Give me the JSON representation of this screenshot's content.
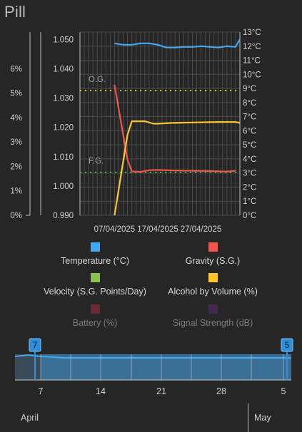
{
  "app": {
    "title": "Pill"
  },
  "chart_data": {
    "type": "line",
    "x_axis": {
      "type": "date",
      "range": [
        "2025-03-30",
        "2025-05-06"
      ],
      "tick_labels": [
        "07/04/2025",
        "17/04/2025",
        "27/04/2025"
      ],
      "grid": true
    },
    "y_axes": [
      {
        "id": "abv",
        "position": "left-outer",
        "range": [
          0,
          7.5
        ],
        "ticks": [
          "0%",
          "1%",
          "2%",
          "3%",
          "4%",
          "5%",
          "6%"
        ]
      },
      {
        "id": "gravity",
        "position": "left-inner",
        "range": [
          0.99,
          1.0525
        ],
        "ticks": [
          "0.990",
          "1.000",
          "1.010",
          "1.020",
          "1.030",
          "1.040",
          "1.050"
        ]
      },
      {
        "id": "temperature",
        "position": "right",
        "range": [
          0,
          13
        ],
        "ticks": [
          "0°C",
          "1°C",
          "2°C",
          "3°C",
          "4°C",
          "5°C",
          "6°C",
          "7°C",
          "8°C",
          "9°C",
          "10°C",
          "11°C",
          "12°C",
          "13°C"
        ]
      }
    ],
    "series": [
      {
        "name": "Temperature (°C)",
        "axis": "temperature",
        "color": "#3fa9f5",
        "visible": true,
        "points": [
          [
            "2025-04-07",
            12.2
          ],
          [
            "2025-04-09",
            12.1
          ],
          [
            "2025-04-11",
            12.1
          ],
          [
            "2025-04-13",
            12.2
          ],
          [
            "2025-04-15",
            12.2
          ],
          [
            "2025-04-17",
            12.1
          ],
          [
            "2025-04-19",
            11.9
          ],
          [
            "2025-04-21",
            11.9
          ],
          [
            "2025-04-23",
            11.95
          ],
          [
            "2025-04-25",
            11.95
          ],
          [
            "2025-04-27",
            12.0
          ],
          [
            "2025-04-29",
            11.95
          ],
          [
            "2025-05-01",
            11.9
          ],
          [
            "2025-05-03",
            12.0
          ],
          [
            "2025-05-05",
            11.95
          ],
          [
            "2025-05-06",
            12.5
          ]
        ]
      },
      {
        "name": "Gravity (S.G.)",
        "axis": "gravity",
        "color": "#f0564b",
        "visible": true,
        "points": [
          [
            "2025-04-07",
            1.0345
          ],
          [
            "2025-04-10",
            1.009
          ],
          [
            "2025-04-11",
            1.005
          ],
          [
            "2025-04-13",
            1.0048
          ],
          [
            "2025-04-15",
            1.0054
          ],
          [
            "2025-04-17",
            1.0055
          ],
          [
            "2025-04-21",
            1.0053
          ],
          [
            "2025-04-25",
            1.0052
          ],
          [
            "2025-04-29",
            1.0051
          ],
          [
            "2025-05-03",
            1.0049
          ],
          [
            "2025-05-05",
            1.0052
          ]
        ]
      },
      {
        "name": "Velocity (S.G. Points/Day)",
        "axis": "gravity",
        "color": "#8bc34a",
        "visible": true,
        "points": []
      },
      {
        "name": "Alcohol by Volume (%)",
        "axis": "abv",
        "color": "#fcc62d",
        "visible": true,
        "points": [
          [
            "2025-04-07",
            0
          ],
          [
            "2025-04-10",
            3.3
          ],
          [
            "2025-04-11",
            3.85
          ],
          [
            "2025-04-14",
            3.85
          ],
          [
            "2025-04-16",
            3.75
          ],
          [
            "2025-04-17",
            3.75
          ],
          [
            "2025-04-20",
            3.78
          ],
          [
            "2025-04-25",
            3.8
          ],
          [
            "2025-05-01",
            3.82
          ],
          [
            "2025-05-05",
            3.82
          ],
          [
            "2025-05-06",
            3.78
          ]
        ]
      },
      {
        "name": "Battery (%)",
        "color": "#6b2a38",
        "visible": false,
        "points": []
      },
      {
        "name": "Signal Strength (dB)",
        "color": "#44284f",
        "visible": false,
        "points": []
      }
    ],
    "reference_lines": [
      {
        "label": "O.G.",
        "axis": "temperature",
        "value": 8.85,
        "color": "#d4c91f",
        "style": "dotted"
      },
      {
        "label": "F.G.",
        "axis": "temperature",
        "value": 3.05,
        "color": "#4caf50",
        "style": "dotted"
      }
    ],
    "legend": {
      "placement": "bottom"
    }
  },
  "navigator": {
    "start_handle": "7",
    "end_handle": "5",
    "ticks": [
      "7",
      "14",
      "21",
      "28",
      "5"
    ],
    "months": [
      "April",
      "May"
    ]
  }
}
